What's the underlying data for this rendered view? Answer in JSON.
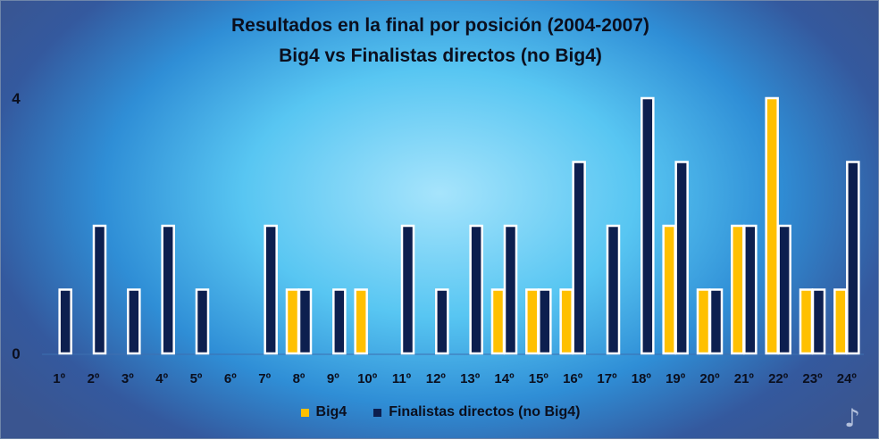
{
  "chart_data": {
    "type": "bar",
    "title": "Resultados en la final por posición (2004-2007)",
    "subtitle": "Big4 vs Finalistas directos (no Big4)",
    "xlabel": "",
    "ylabel": "",
    "ylim": [
      0,
      4
    ],
    "yticks": [
      "0",
      "4"
    ],
    "grid": false,
    "legend": "bottom",
    "categories": [
      "1º",
      "2º",
      "3º",
      "4º",
      "5º",
      "6º",
      "7º",
      "8º",
      "9º",
      "10º",
      "11º",
      "12º",
      "13º",
      "14º",
      "15º",
      "16º",
      "17º",
      "18º",
      "19º",
      "20º",
      "21º",
      "22º",
      "23º",
      "24º"
    ],
    "series": [
      {
        "name": "Big4",
        "color": "#ffc000",
        "values": [
          0,
          0,
          0,
          0,
          0,
          0,
          0,
          1,
          0,
          1,
          0,
          0,
          0,
          1,
          1,
          1,
          0,
          0,
          2,
          1,
          2,
          4,
          1,
          1
        ]
      },
      {
        "name": "Finalistas directos (no Big4)",
        "color": "#0d1f4f",
        "values": [
          1,
          2,
          1,
          2,
          1,
          0,
          2,
          1,
          1,
          0,
          2,
          1,
          2,
          2,
          1,
          3,
          2,
          4,
          3,
          1,
          2,
          2,
          1,
          3
        ]
      }
    ]
  },
  "logo_icon": "music-notes-icon"
}
